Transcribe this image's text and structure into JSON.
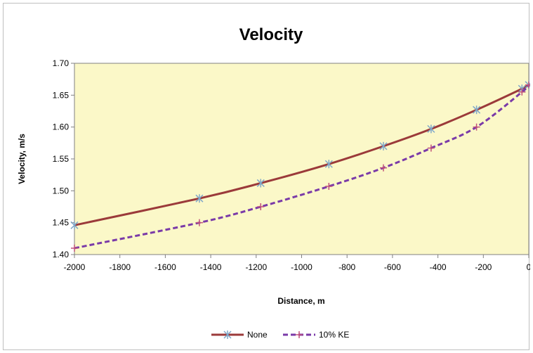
{
  "chart_data": {
    "type": "line",
    "title": "Velocity",
    "xlabel": "Distance, m",
    "ylabel": "Velocity, m/s",
    "xlim": [
      -2000,
      0
    ],
    "ylim": [
      1.4,
      1.7
    ],
    "xticks": [
      -2000,
      -1800,
      -1600,
      -1400,
      -1200,
      -1000,
      -800,
      -600,
      -400,
      -200,
      0
    ],
    "yticks": [
      "1.40",
      "1.45",
      "1.50",
      "1.55",
      "1.60",
      "1.65",
      "1.70"
    ],
    "x": [
      -2000,
      -1450,
      -1180,
      -880,
      -640,
      -430,
      -230,
      -30,
      0
    ],
    "series": [
      {
        "name": "None",
        "color": "#9b3a3a",
        "line": "solid",
        "marker": "asterisk",
        "marker_color": "#7fa7c9",
        "values": [
          1.446,
          1.488,
          1.512,
          1.542,
          1.57,
          1.597,
          1.627,
          1.66,
          1.666
        ]
      },
      {
        "name": "10% KE",
        "color": "#7a3aa8",
        "line": "dashed",
        "marker": "plus",
        "marker_color": "#c0507a",
        "values": [
          1.41,
          1.45,
          1.475,
          1.507,
          1.536,
          1.567,
          1.6,
          1.655,
          1.666
        ]
      }
    ],
    "plot_background": "#fbf8c8",
    "grid": false,
    "legend": "bottom-center"
  }
}
